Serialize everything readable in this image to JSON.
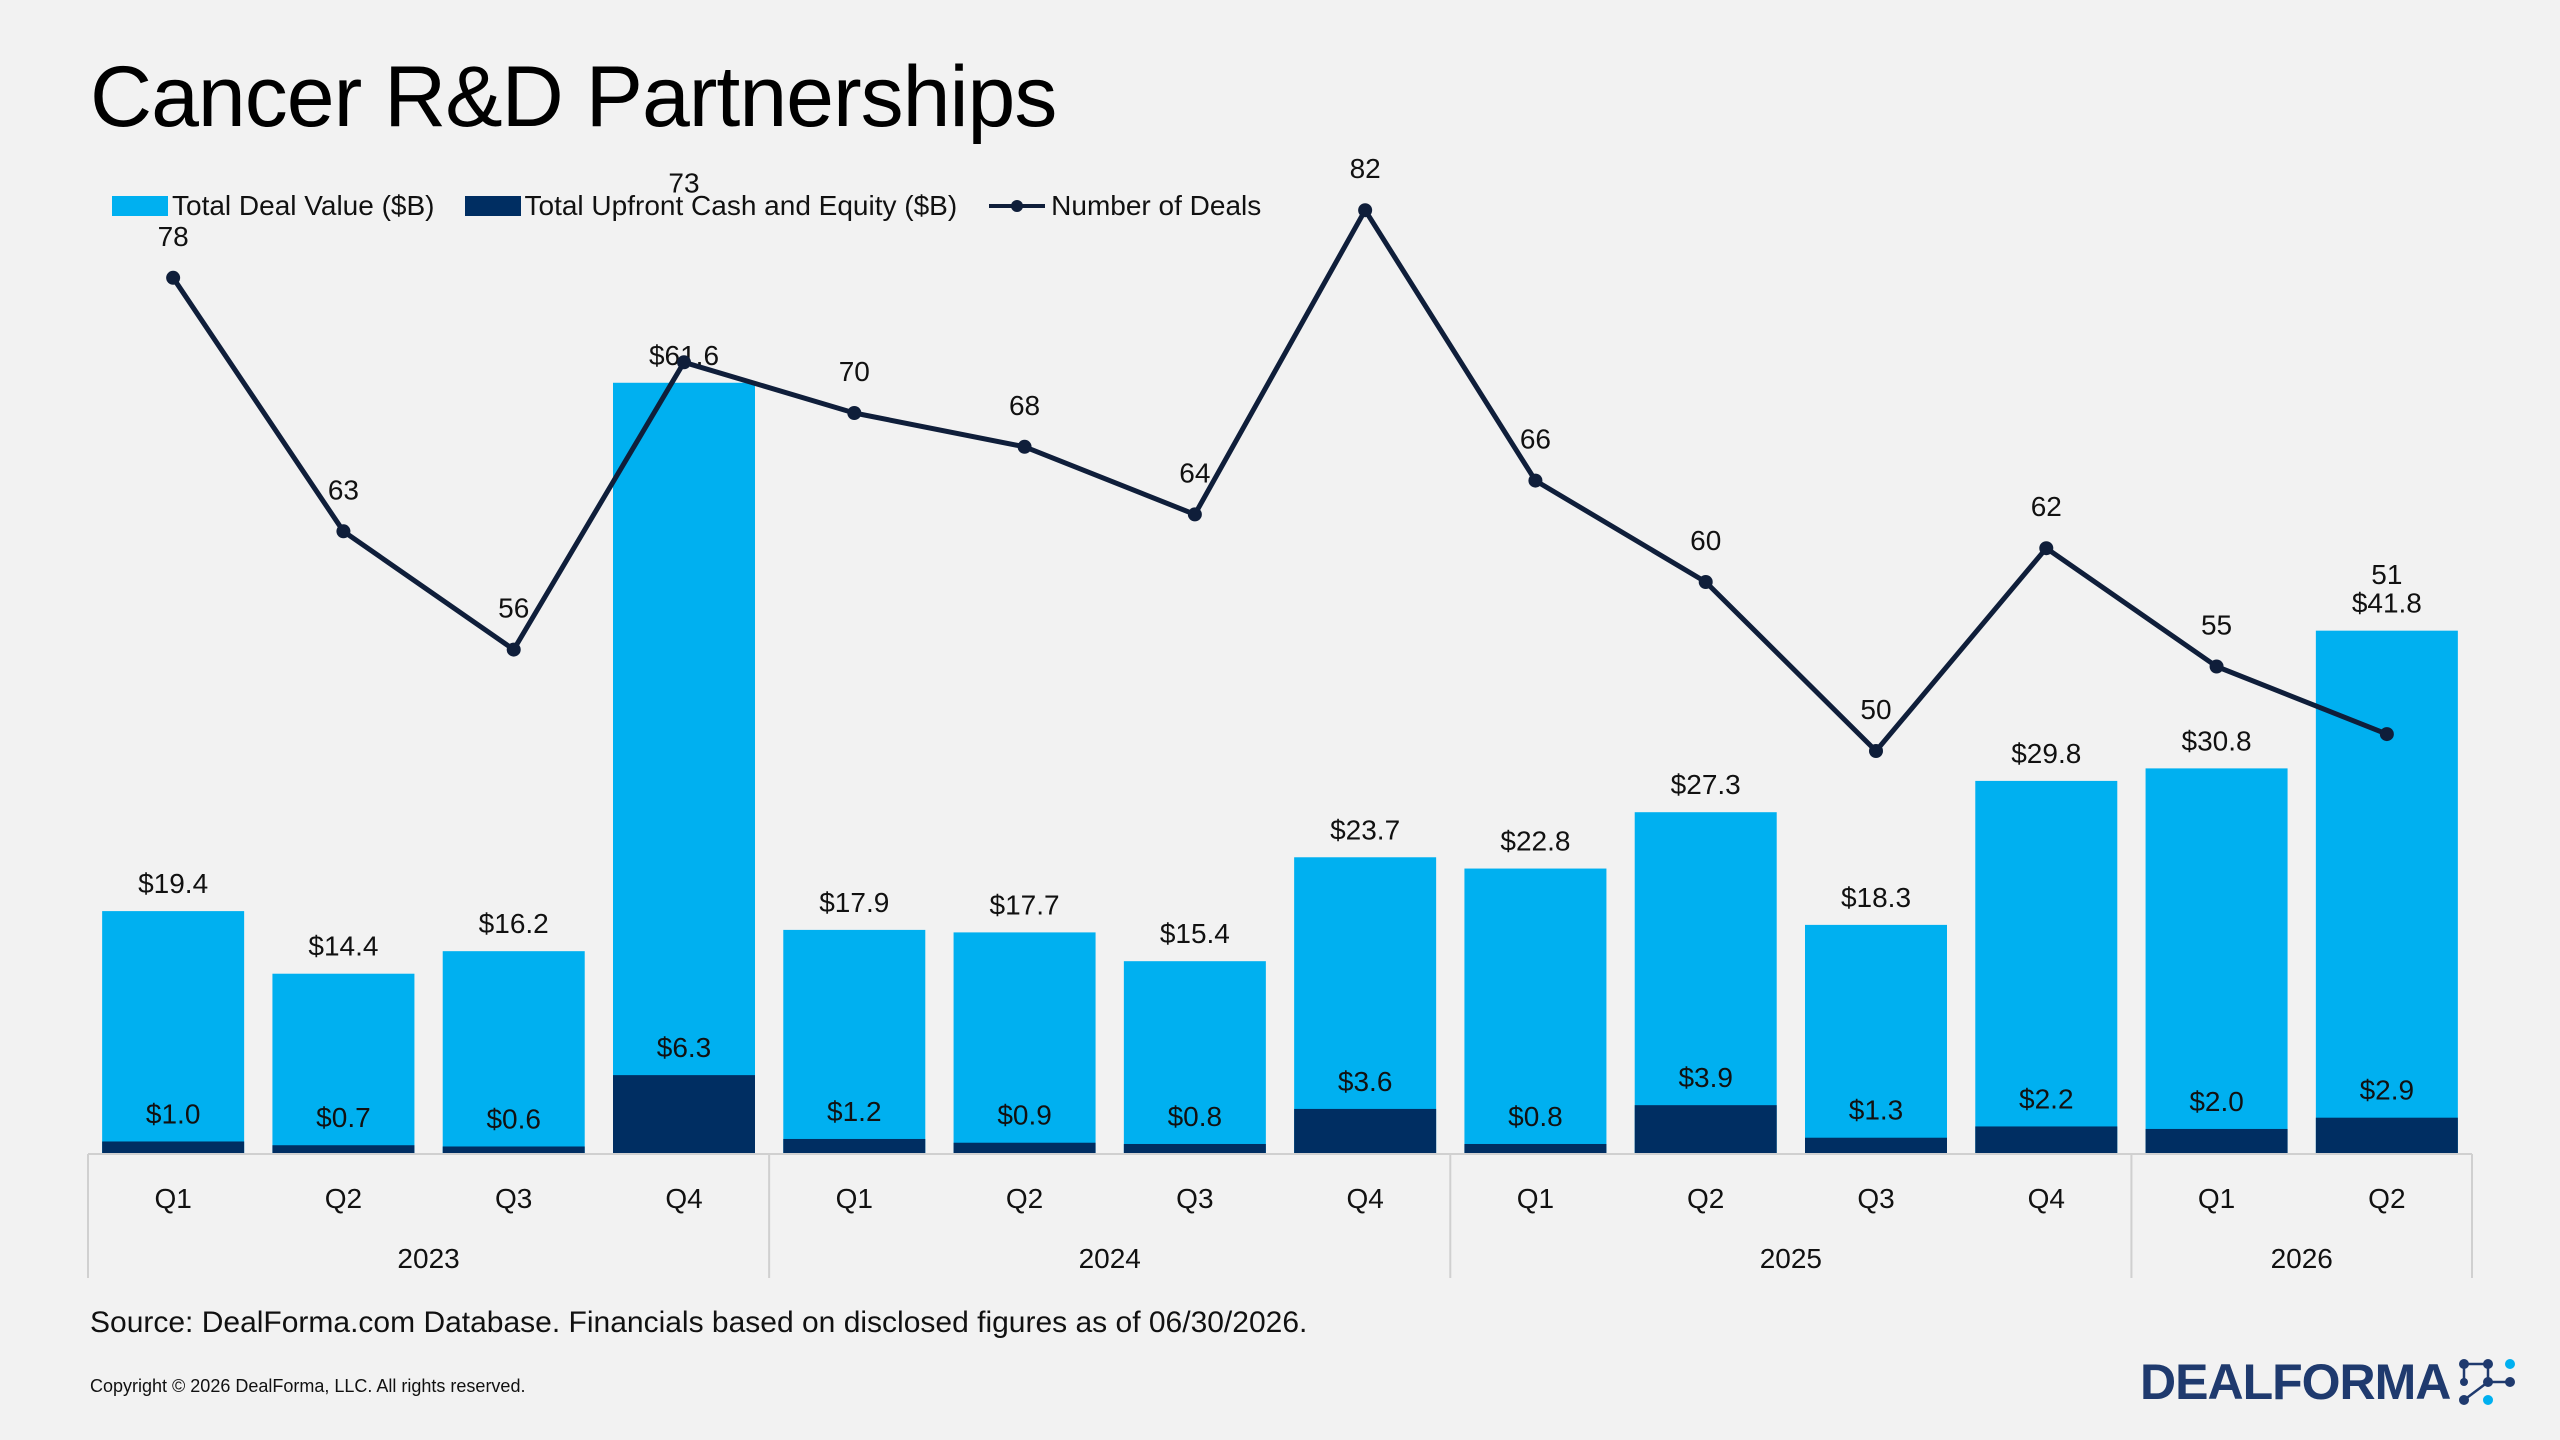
{
  "title": "Cancer R&D Partnerships",
  "legend": {
    "total_deal_value": "Total Deal Value ($B)",
    "upfront": "Total Upfront Cash and Equity ($B)",
    "deals": "Number of Deals"
  },
  "colors": {
    "total": "#00b0f0",
    "upfront": "#002e62",
    "line": "#0f1e3a"
  },
  "chart_data": {
    "type": "bar",
    "categories": [
      "Q1",
      "Q2",
      "Q3",
      "Q4",
      "Q1",
      "Q2",
      "Q3",
      "Q4",
      "Q1",
      "Q2",
      "Q3",
      "Q4",
      "Q1",
      "Q2"
    ],
    "years": [
      {
        "label": "2023",
        "count": 4
      },
      {
        "label": "2024",
        "count": 4
      },
      {
        "label": "2025",
        "count": 4
      },
      {
        "label": "2026",
        "count": 2
      }
    ],
    "series": [
      {
        "name": "Total Deal Value ($B)",
        "type": "bar",
        "values": [
          19.4,
          14.4,
          16.2,
          61.6,
          17.9,
          17.7,
          15.4,
          23.7,
          22.8,
          27.3,
          18.3,
          29.8,
          30.8,
          41.8
        ],
        "labels": [
          "$19.4",
          "$14.4",
          "$16.2",
          "$61.6",
          "$17.9",
          "$17.7",
          "$15.4",
          "$23.7",
          "$22.8",
          "$27.3",
          "$18.3",
          "$29.8",
          "$30.8",
          "$41.8"
        ]
      },
      {
        "name": "Total Upfront Cash and Equity ($B)",
        "type": "bar",
        "values": [
          1.0,
          0.7,
          0.6,
          6.3,
          1.2,
          0.9,
          0.8,
          3.6,
          0.8,
          3.9,
          1.3,
          2.2,
          2.0,
          2.9
        ],
        "labels": [
          "$1.0",
          "$0.7",
          "$0.6",
          "$6.3",
          "$1.2",
          "$0.9",
          "$0.8",
          "$3.6",
          "$0.8",
          "$3.9",
          "$1.3",
          "$2.2",
          "$2.0",
          "$2.9"
        ]
      },
      {
        "name": "Number of Deals",
        "type": "line",
        "values": [
          78,
          63,
          56,
          73,
          70,
          68,
          64,
          82,
          66,
          60,
          50,
          62,
          55,
          51
        ],
        "labels": [
          "78",
          "63",
          "56",
          "73",
          "70",
          "68",
          "64",
          "82",
          "66",
          "60",
          "50",
          "62",
          "55",
          "51"
        ]
      }
    ]
  },
  "source": "Source: DealForma.com Database. Financials based on disclosed figures as of 06/30/2026.",
  "copyright": "Copyright © 2026 DealForma, LLC. All rights reserved.",
  "logo_text": "DEALFORMA"
}
